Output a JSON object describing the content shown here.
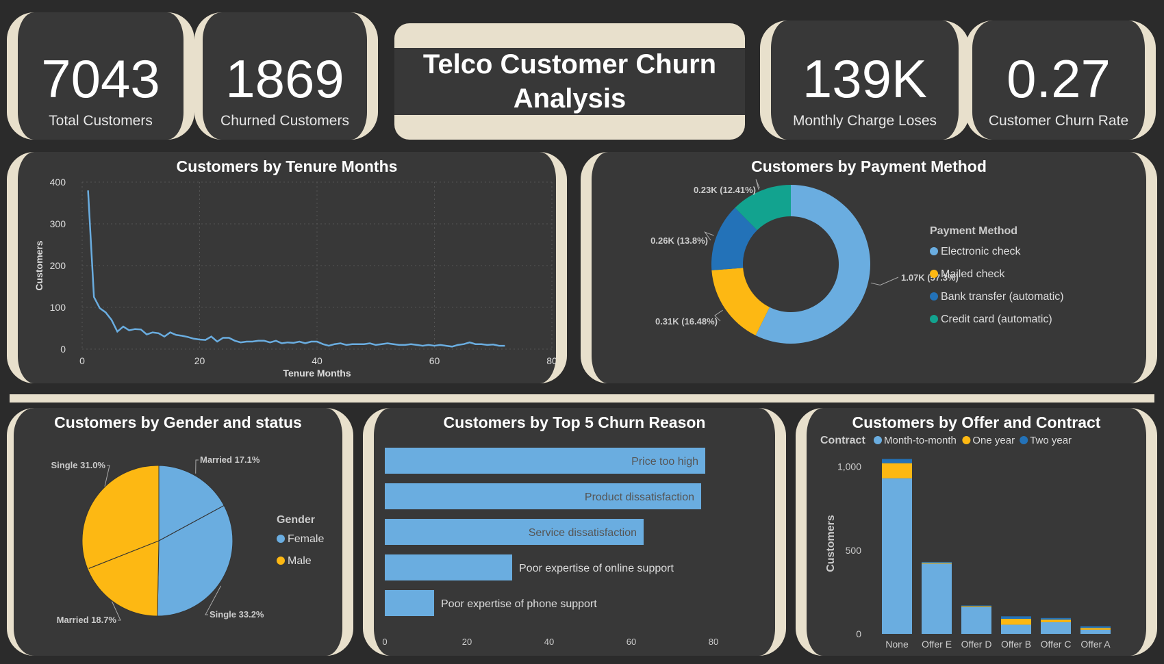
{
  "kpis": {
    "total_customers": {
      "value": "7043",
      "label": "Total Customers"
    },
    "churned_customers": {
      "value": "1869",
      "label": "Churned Customers"
    },
    "monthly_charge_loses": {
      "value": "139K",
      "label": "Monthly Charge Loses"
    },
    "churn_rate": {
      "value": "0.27",
      "label": "Customer Churn Rate"
    }
  },
  "dashboard_title": {
    "line1": "Telco Customer Churn",
    "line2": "Analysis"
  },
  "colors": {
    "primary": "#6aade0",
    "yellow": "#fdb813",
    "blue": "#2372b8",
    "teal": "#12a38f",
    "frame": "#e8e0cc"
  },
  "chart_data": [
    {
      "type": "line",
      "title": "Customers by Tenure Months",
      "xlabel": "Tenure Months",
      "ylabel": "Customers",
      "xlim": [
        0,
        80
      ],
      "ylim": [
        0,
        400
      ],
      "xticks": [
        "0",
        "20",
        "40",
        "60",
        "80"
      ],
      "yticks": [
        "0",
        "100",
        "200",
        "300",
        "400"
      ],
      "x": [
        1,
        2,
        3,
        4,
        5,
        6,
        7,
        8,
        9,
        10,
        11,
        12,
        13,
        14,
        15,
        16,
        17,
        18,
        19,
        20,
        21,
        22,
        23,
        24,
        25,
        26,
        27,
        28,
        29,
        30,
        31,
        32,
        33,
        34,
        35,
        36,
        37,
        38,
        39,
        40,
        41,
        42,
        43,
        44,
        45,
        46,
        47,
        48,
        49,
        50,
        51,
        52,
        53,
        54,
        55,
        56,
        57,
        58,
        59,
        60,
        61,
        62,
        63,
        64,
        65,
        66,
        67,
        68,
        69,
        70,
        71,
        72
      ],
      "y": [
        380,
        125,
        98,
        88,
        70,
        42,
        54,
        45,
        48,
        47,
        35,
        40,
        38,
        30,
        40,
        34,
        32,
        29,
        25,
        23,
        22,
        30,
        18,
        27,
        27,
        20,
        16,
        18,
        18,
        20,
        20,
        16,
        20,
        14,
        16,
        15,
        18,
        14,
        18,
        18,
        12,
        8,
        12,
        14,
        10,
        12,
        12,
        12,
        14,
        10,
        12,
        14,
        12,
        10,
        10,
        12,
        10,
        8,
        10,
        8,
        10,
        8,
        6,
        10,
        12,
        16,
        12,
        12,
        10,
        11,
        8,
        8
      ]
    },
    {
      "type": "pie",
      "title": "Customers by Payment Method",
      "legend_title": "Payment Method",
      "categories": [
        "Electronic check",
        "Mailed check",
        "Bank transfer (automatic)",
        "Credit card (automatic)"
      ],
      "values": [
        57.3,
        16.48,
        13.8,
        12.41
      ],
      "labels": [
        "1.07K (57.3%)",
        "0.31K (16.48%)",
        "0.26K (13.8%)",
        "0.23K (12.41%)"
      ],
      "colors": [
        "#6aade0",
        "#fdb813",
        "#2372b8",
        "#12a38f"
      ]
    },
    {
      "type": "pie",
      "title": "Customers by Gender and status",
      "legend_title": "Gender",
      "legend": [
        "Female",
        "Male"
      ],
      "slices": [
        {
          "gender": "Female",
          "label": "Married 17.1%",
          "value": 17.1
        },
        {
          "gender": "Female",
          "label": "Single 33.2%",
          "value": 33.2
        },
        {
          "gender": "Male",
          "label": "Married 18.7%",
          "value": 18.7
        },
        {
          "gender": "Male",
          "label": "Single 31.0%",
          "value": 31.0
        }
      ],
      "colors": [
        "#6aade0",
        "#fdb813"
      ]
    },
    {
      "type": "bar",
      "orientation": "horizontal",
      "title": "Customers by Top 5 Churn Reason",
      "categories": [
        "Price too high",
        "Product dissatisfaction",
        "Service dissatisfaction",
        "Poor expertise of online support",
        "Poor expertise of phone support"
      ],
      "values": [
        78,
        77,
        63,
        31,
        12
      ],
      "xlim": [
        0,
        80
      ],
      "xticks": [
        "0",
        "20",
        "40",
        "60",
        "80"
      ]
    },
    {
      "type": "bar",
      "stacked": true,
      "title": "Customers by Offer and Contract",
      "legend_title": "Contract",
      "ylabel": "Customers",
      "categories": [
        "None",
        "Offer E",
        "Offer D",
        "Offer B",
        "Offer C",
        "Offer A"
      ],
      "series": [
        {
          "name": "Month-to-month",
          "values": [
            930,
            420,
            160,
            55,
            70,
            25
          ]
        },
        {
          "name": "One year",
          "values": [
            90,
            5,
            5,
            35,
            15,
            10
          ]
        },
        {
          "name": "Two year",
          "values": [
            25,
            5,
            5,
            15,
            10,
            10
          ]
        }
      ],
      "ylim": [
        0,
        1080
      ],
      "yticks": [
        "0",
        "500",
        "1,000"
      ],
      "colors": [
        "#6aade0",
        "#fdb813",
        "#2372b8"
      ]
    }
  ]
}
